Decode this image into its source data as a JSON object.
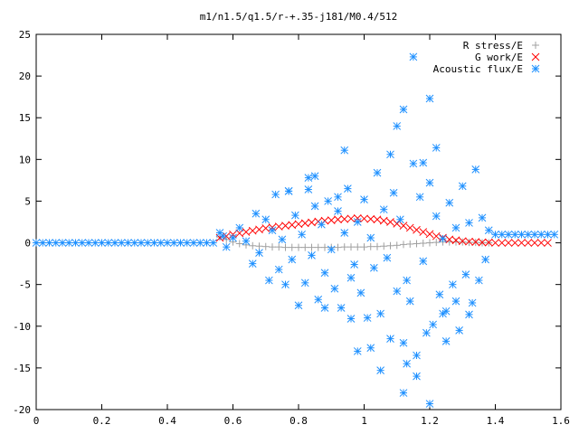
{
  "chart_data": {
    "type": "scatter",
    "title": "m1/n1.5/q1.5/r-+.35-j181/M0.4/512",
    "xlabel": "",
    "ylabel": "",
    "xlim": [
      0,
      1.6
    ],
    "ylim": [
      -20,
      25
    ],
    "x_ticks": [
      "0",
      "0.2",
      "0.4",
      "0.6",
      "0.8",
      "1",
      "1.2",
      "1.4",
      "1.6"
    ],
    "y_ticks": [
      "-20",
      "-15",
      "-10",
      "-5",
      "0",
      "5",
      "10",
      "15",
      "20",
      "25"
    ],
    "grid": false,
    "legend_position": "top-right",
    "series": [
      {
        "name": "R stress/E",
        "marker": "plus",
        "color": "#a0a0a0",
        "x": [
          0.56,
          0.58,
          0.6,
          0.62,
          0.64,
          0.66,
          0.68,
          0.7,
          0.72,
          0.74,
          0.76,
          0.78,
          0.8,
          0.82,
          0.84,
          0.86,
          0.88,
          0.9,
          0.92,
          0.94,
          0.96,
          0.98,
          1.0,
          1.02,
          1.04,
          1.06,
          1.08,
          1.1,
          1.12,
          1.14,
          1.16,
          1.18,
          1.2,
          1.22,
          1.24,
          1.26,
          1.28,
          1.3,
          1.32,
          1.34,
          1.36,
          1.38
        ],
        "y": [
          0.7,
          0.4,
          0.1,
          -0.1,
          -0.25,
          -0.35,
          -0.4,
          -0.45,
          -0.5,
          -0.5,
          -0.55,
          -0.55,
          -0.55,
          -0.55,
          -0.55,
          -0.55,
          -0.55,
          -0.55,
          -0.55,
          -0.5,
          -0.5,
          -0.5,
          -0.5,
          -0.45,
          -0.45,
          -0.4,
          -0.35,
          -0.3,
          -0.2,
          -0.15,
          -0.1,
          -0.05,
          0.0,
          0.05,
          0.1,
          0.1,
          0.1,
          0.1,
          0.05,
          0.05,
          0.0,
          0.0
        ]
      },
      {
        "name": "G work/E",
        "marker": "cross",
        "color": "#ff0000",
        "x": [
          0.56,
          0.58,
          0.6,
          0.62,
          0.64,
          0.66,
          0.68,
          0.7,
          0.72,
          0.74,
          0.76,
          0.78,
          0.8,
          0.82,
          0.84,
          0.86,
          0.88,
          0.9,
          0.92,
          0.94,
          0.96,
          0.98,
          1.0,
          1.02,
          1.04,
          1.06,
          1.08,
          1.1,
          1.12,
          1.14,
          1.16,
          1.18,
          1.2,
          1.22,
          1.24,
          1.26,
          1.28,
          1.3,
          1.32,
          1.34,
          1.36,
          1.38,
          1.4,
          1.42,
          1.44,
          1.46,
          1.48,
          1.5,
          1.52,
          1.54,
          1.56
        ],
        "y": [
          0.6,
          0.8,
          1.0,
          1.15,
          1.3,
          1.45,
          1.6,
          1.75,
          1.85,
          1.95,
          2.05,
          2.15,
          2.25,
          2.35,
          2.45,
          2.55,
          2.65,
          2.7,
          2.8,
          2.85,
          2.9,
          2.95,
          2.9,
          2.85,
          2.8,
          2.65,
          2.5,
          2.3,
          2.05,
          1.8,
          1.55,
          1.3,
          1.05,
          0.8,
          0.6,
          0.4,
          0.3,
          0.2,
          0.15,
          0.1,
          0.05,
          0.05,
          0.0,
          0.0,
          0.0,
          0.0,
          0.0,
          0.0,
          0.0,
          0.0,
          0.0
        ]
      },
      {
        "name": "Acoustic flux/E",
        "marker": "star",
        "color": "#1e90ff",
        "x": [
          0.0,
          0.02,
          0.04,
          0.06,
          0.08,
          0.1,
          0.12,
          0.14,
          0.16,
          0.18,
          0.2,
          0.22,
          0.24,
          0.26,
          0.28,
          0.3,
          0.32,
          0.34,
          0.36,
          0.38,
          0.4,
          0.42,
          0.44,
          0.46,
          0.48,
          0.5,
          0.52,
          0.54,
          1.4,
          1.42,
          1.44,
          1.46,
          1.48,
          1.5,
          1.52,
          1.54,
          1.56,
          1.58,
          0.56,
          0.57,
          0.58,
          0.6,
          0.62,
          0.64,
          0.66,
          0.67,
          0.68,
          0.7,
          0.71,
          0.72,
          0.73,
          0.74,
          0.75,
          0.76,
          0.77,
          0.78,
          0.79,
          0.8,
          0.81,
          0.82,
          0.83,
          0.84,
          0.85,
          0.86,
          0.87,
          0.88,
          0.89,
          0.9,
          0.91,
          0.92,
          0.93,
          0.94,
          0.95,
          0.96,
          0.97,
          0.98,
          0.99,
          1.0,
          1.01,
          1.02,
          1.03,
          1.04,
          1.05,
          1.06,
          1.07,
          1.08,
          1.09,
          1.1,
          1.11,
          1.12,
          1.13,
          1.14,
          1.15,
          1.16,
          1.17,
          1.18,
          1.19,
          1.2,
          1.21,
          1.22,
          1.23,
          1.24,
          1.25,
          1.26,
          1.27,
          1.28,
          1.29,
          1.3,
          1.31,
          1.32,
          1.33,
          1.34,
          1.35,
          1.36,
          1.37,
          1.38,
          1.15,
          1.2,
          1.12,
          1.22,
          1.1,
          1.18,
          0.94,
          1.08,
          1.13,
          1.25,
          1.16,
          0.98,
          1.05,
          1.2,
          1.12,
          1.02,
          0.88,
          0.96,
          1.24,
          1.28,
          1.32,
          0.85,
          0.92,
          0.77,
          0.83
        ],
        "y": [
          0,
          0,
          0,
          0,
          0,
          0,
          0,
          0,
          0,
          0,
          0,
          0,
          0,
          0,
          0,
          0,
          0,
          0,
          0,
          0,
          0,
          0,
          0,
          0,
          0,
          0,
          0,
          0,
          1,
          1,
          1,
          1,
          1,
          1,
          1,
          1,
          1,
          1,
          1.2,
          0.8,
          -0.5,
          0.6,
          1.8,
          0.2,
          -2.5,
          3.5,
          -1.2,
          2.8,
          -4.5,
          1.5,
          5.8,
          -3.2,
          0.4,
          -5.0,
          6.2,
          -2.0,
          3.3,
          -7.5,
          1.0,
          -4.8,
          7.8,
          -1.5,
          4.4,
          -6.8,
          2.2,
          -3.6,
          5.0,
          -0.8,
          -5.5,
          3.8,
          -7.8,
          1.2,
          6.5,
          -4.2,
          -2.6,
          2.5,
          -6.0,
          5.2,
          -9.0,
          0.6,
          -3.0,
          8.4,
          -8.5,
          4.0,
          -1.8,
          -11.5,
          6.0,
          -5.8,
          2.8,
          -12.0,
          -4.5,
          -7.0,
          9.5,
          -13.5,
          5.5,
          -2.2,
          -10.8,
          7.2,
          -9.8,
          3.2,
          -6.2,
          0.5,
          -8.2,
          4.8,
          -5.0,
          1.8,
          -10.5,
          6.8,
          -3.8,
          2.4,
          -7.2,
          8.8,
          -4.5,
          3.0,
          -2.0,
          1.5,
          22.3,
          17.3,
          16.0,
          11.4,
          14.0,
          9.6,
          11.1,
          10.6,
          -14.5,
          -11.8,
          -16.0,
          -13.0,
          -15.3,
          -19.3,
          -18.0,
          -12.6,
          -7.8,
          -9.1,
          -8.5,
          -7.0,
          -8.6,
          8.0,
          5.5,
          6.2,
          6.4
        ]
      }
    ]
  }
}
